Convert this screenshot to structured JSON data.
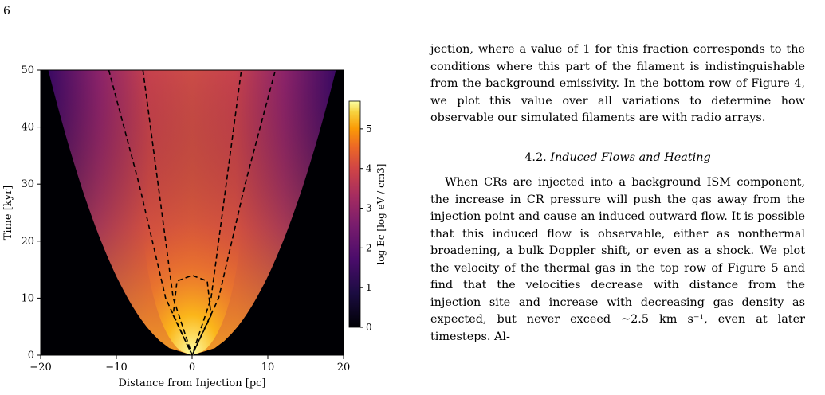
{
  "page_number": "6",
  "figure": {
    "xlabel": "Distance from Injection [pc]",
    "ylabel": "Time [kyr]",
    "colorbar_label": "log Ec [log eV / cm3]",
    "x_ticks": [
      "−20",
      "−10",
      "0",
      "10",
      "20"
    ],
    "y_ticks": [
      "0",
      "10",
      "20",
      "30",
      "40",
      "50"
    ],
    "colorbar_ticks": [
      "0",
      "1",
      "2",
      "3",
      "4",
      "5"
    ]
  },
  "chart_data": {
    "type": "heatmap",
    "xlabel": "Distance from Injection [pc]",
    "ylabel": "Time [kyr]",
    "xlim": [
      -20,
      20
    ],
    "ylim": [
      0,
      50
    ],
    "colorbar": {
      "label": "log Ec [log eV / cm3]",
      "range": [
        0,
        5.7
      ],
      "colormap": "inferno"
    },
    "contours": [
      {
        "name": "inner",
        "points": [
          [
            0,
            0
          ],
          [
            -2.5,
            7
          ],
          [
            -2.0,
            13
          ],
          [
            0,
            14
          ],
          [
            2.0,
            13
          ],
          [
            2.5,
            7
          ],
          [
            0,
            0
          ]
        ]
      },
      {
        "name": "middle",
        "points": [
          [
            -6.5,
            50
          ],
          [
            -4.5,
            30
          ],
          [
            -2.5,
            10
          ],
          [
            0,
            0
          ],
          [
            2.5,
            10
          ],
          [
            4.5,
            30
          ],
          [
            6.5,
            50
          ]
        ]
      },
      {
        "name": "outer",
        "points": [
          [
            -11,
            50
          ],
          [
            -7,
            30
          ],
          [
            -3.5,
            10
          ],
          [
            0,
            0
          ],
          [
            3.5,
            10
          ],
          [
            7,
            30
          ],
          [
            11,
            50
          ]
        ]
      }
    ],
    "envelope_halfwidth_at_top": 19,
    "grid": false
  },
  "text": {
    "p1": "jection, where a value of 1 for this fraction corresponds to the conditions where this part of the filament is indistinguishable from the background emissivity. In the bottom row of Figure 4, we plot this value over all variations to determine how observable our simulated filaments are with radio arrays.",
    "section_number": "4.2.",
    "section_title": "Induced Flows and Heating",
    "p2": "When CRs are injected into a background ISM component, the increase in CR pressure will push the gas away from the injection point and cause an induced outward flow. It is possible that this induced flow is observable, either as nonthermal broadening, a bulk Doppler shift, or even as a shock. We plot the velocity of the thermal gas in the top row of Figure 5 and find that the velocities decrease with distance from the injection site and increase with decreasing gas density as expected, but never exceed ~2.5 km s⁻¹, even at later timesteps. Al-"
  },
  "colors": {
    "background_black": "#000004",
    "ref_link": "#3b5fbf"
  }
}
